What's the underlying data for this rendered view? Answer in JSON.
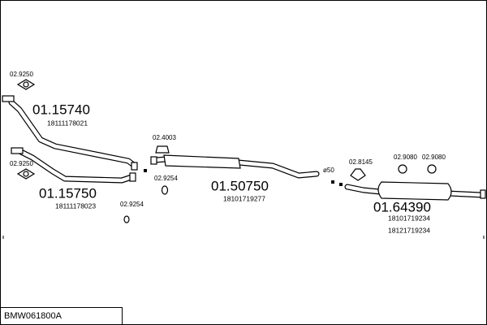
{
  "title": "BMW061800A",
  "parts": [
    {
      "number": "01.15740",
      "code": "18111178021"
    },
    {
      "number": "01.15750",
      "code": "18111178023"
    },
    {
      "number": "01.50750",
      "code": "18101719277"
    },
    {
      "number": "01.64390",
      "codes": [
        "18101719234",
        "18121719234"
      ]
    }
  ],
  "fittings": [
    "02.9250",
    "02.9250",
    "02.9254",
    "02.4003",
    "02.9254",
    "02.8145",
    "02.9080",
    "02.9080"
  ],
  "annotations": [
    "ø50"
  ]
}
